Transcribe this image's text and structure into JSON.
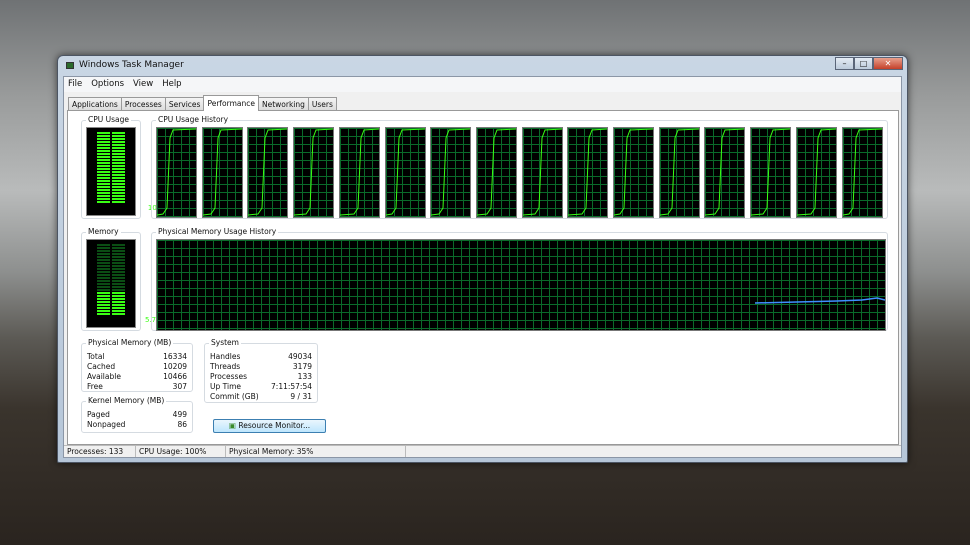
{
  "window": {
    "title": "Windows Task Manager",
    "controls": [
      "minimize",
      "maximize",
      "close"
    ]
  },
  "menu": [
    "File",
    "Options",
    "View",
    "Help"
  ],
  "tabs": [
    "Applications",
    "Processes",
    "Services",
    "Performance",
    "Networking",
    "Users"
  ],
  "active_tab": "Performance",
  "cpu": {
    "label": "CPU Usage",
    "value": "100 %",
    "percent": 100,
    "history_label": "CPU Usage History",
    "cores": 16
  },
  "memory": {
    "label": "Memory",
    "value": "5.73 GB",
    "percent": 35,
    "history_label": "Physical Memory Usage History"
  },
  "physical_memory": {
    "label": "Physical Memory (MB)",
    "rows": [
      [
        "Total",
        "16334"
      ],
      [
        "Cached",
        "10209"
      ],
      [
        "Available",
        "10466"
      ],
      [
        "Free",
        "307"
      ]
    ]
  },
  "kernel_memory": {
    "label": "Kernel Memory (MB)",
    "rows": [
      [
        "Paged",
        "499"
      ],
      [
        "Nonpaged",
        "86"
      ]
    ]
  },
  "system": {
    "label": "System",
    "rows": [
      [
        "Handles",
        "49034"
      ],
      [
        "Threads",
        "3179"
      ],
      [
        "Processes",
        "133"
      ],
      [
        "Up Time",
        "7:11:57:54"
      ],
      [
        "Commit (GB)",
        "9 / 31"
      ]
    ]
  },
  "resource_monitor_label": "Resource Monitor...",
  "status": {
    "processes": "Processes: 133",
    "cpu": "CPU Usage: 100%",
    "memory": "Physical Memory: 35%"
  },
  "colors": {
    "graph_line": "#39ff14",
    "memory_line": "#3f8fff",
    "grid": "#0a6a2a"
  }
}
